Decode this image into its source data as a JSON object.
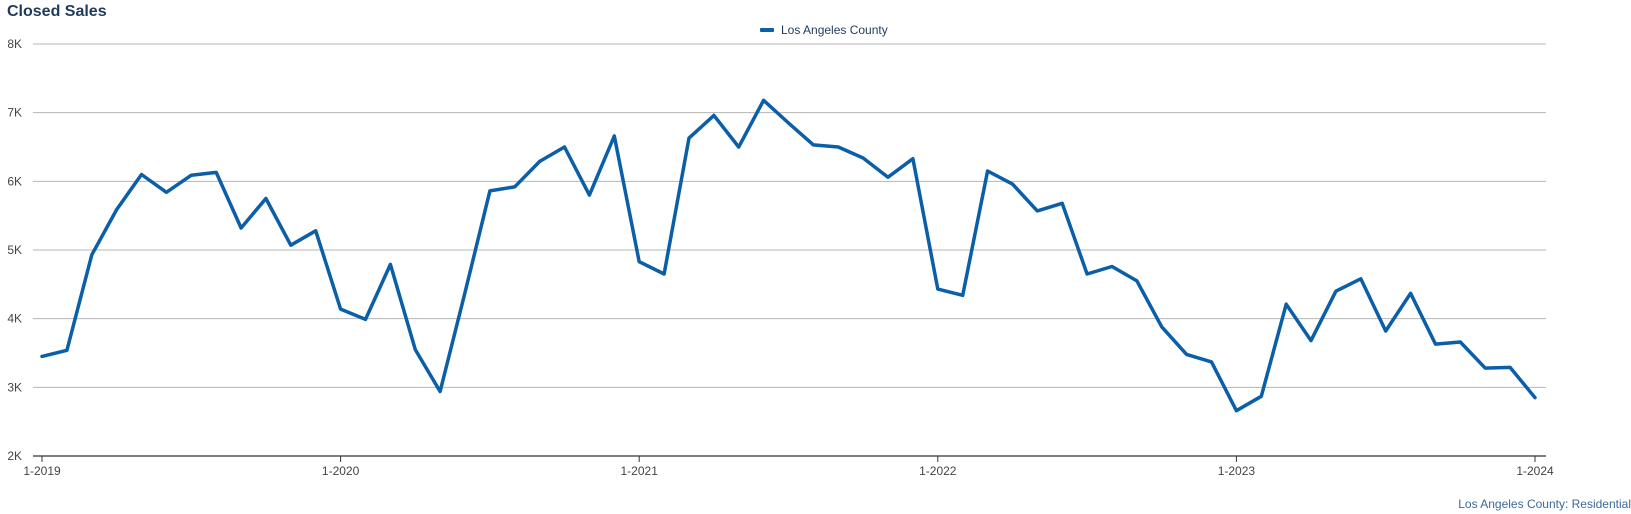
{
  "title": "Closed Sales",
  "legend_label": "Los Angeles County",
  "footnote": "Los Angeles County: Residential",
  "colors": {
    "series": "#0b5ea8",
    "grid": "#b5b5b5",
    "axis": "#333333",
    "title": "#1f3b5c"
  },
  "chart_data": {
    "type": "line",
    "title": "Closed Sales",
    "xlabel": "",
    "ylabel": "",
    "ylim": [
      2000,
      8000
    ],
    "yticks": [
      2000,
      3000,
      4000,
      5000,
      6000,
      7000,
      8000
    ],
    "ytick_labels": [
      "2K",
      "3K",
      "4K",
      "5K",
      "6K",
      "7K",
      "8K"
    ],
    "xtick_labels": [
      "1-2019",
      "1-2020",
      "1-2021",
      "1-2022",
      "1-2023",
      "1-2024"
    ],
    "grid": true,
    "legend_position": "top-center",
    "x": [
      "2019-01",
      "2019-02",
      "2019-03",
      "2019-04",
      "2019-05",
      "2019-06",
      "2019-07",
      "2019-08",
      "2019-09",
      "2019-10",
      "2019-11",
      "2019-12",
      "2020-01",
      "2020-02",
      "2020-03",
      "2020-04",
      "2020-05",
      "2020-06",
      "2020-07",
      "2020-08",
      "2020-09",
      "2020-10",
      "2020-11",
      "2020-12",
      "2021-01",
      "2021-02",
      "2021-03",
      "2021-04",
      "2021-05",
      "2021-06",
      "2021-07",
      "2021-08",
      "2021-09",
      "2021-10",
      "2021-11",
      "2021-12",
      "2022-01",
      "2022-02",
      "2022-03",
      "2022-04",
      "2022-05",
      "2022-06",
      "2022-07",
      "2022-08",
      "2022-09",
      "2022-10",
      "2022-11",
      "2022-12",
      "2023-01",
      "2023-02",
      "2023-03",
      "2023-04",
      "2023-05",
      "2023-06",
      "2023-07",
      "2023-08",
      "2023-09",
      "2023-10",
      "2023-11",
      "2023-12",
      "2024-01"
    ],
    "series": [
      {
        "name": "Los Angeles County",
        "values": [
          3450,
          3540,
          4930,
          5590,
          6100,
          5840,
          6090,
          6130,
          5320,
          5750,
          5070,
          5280,
          4140,
          3990,
          4790,
          3550,
          2940,
          4380,
          5860,
          5920,
          6290,
          6500,
          5800,
          6660,
          4830,
          4650,
          6630,
          6960,
          6500,
          7180,
          6850,
          6530,
          6500,
          6340,
          6060,
          6330,
          4430,
          4340,
          6150,
          5960,
          5570,
          5680,
          4650,
          4760,
          4550,
          3880,
          3480,
          3370,
          2660,
          2870,
          4210,
          3680,
          4400,
          4580,
          3820,
          4370,
          3630,
          3660,
          3280,
          3290,
          2850
        ]
      }
    ]
  }
}
